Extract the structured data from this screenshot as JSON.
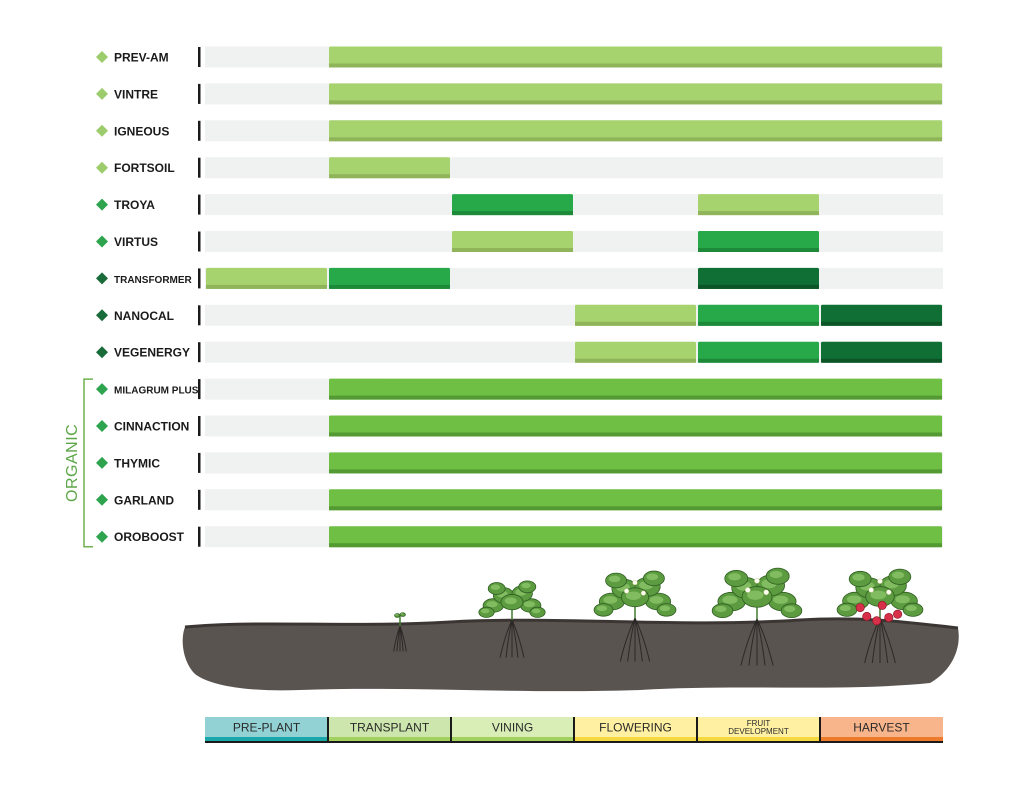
{
  "chart_data": {
    "type": "timeline",
    "title": "",
    "stages": [
      "PRE-PLANT",
      "TRANSPLANT",
      "VINING",
      "FLOWERING",
      "FRUIT DEVELOPMENT",
      "HARVEST"
    ],
    "stage_colors": [
      "#92d2d4",
      "#cde6ae",
      "#d9eeb6",
      "#fff0a2",
      "#fff0a2",
      "#f8b48a"
    ],
    "stage_bar_colors": [
      "#1aa7a9",
      "#a2d15f",
      "#a2d15f",
      "#f4d940",
      "#f4d940",
      "#ee7a2c"
    ],
    "products": [
      {
        "name": "PREV-AM",
        "marker": "light",
        "segments": [
          {
            "stages": [
              "TRANSPLANT",
              "HARVEST"
            ],
            "shade": "light"
          }
        ]
      },
      {
        "name": "VINTRE",
        "marker": "light",
        "segments": [
          {
            "stages": [
              "TRANSPLANT",
              "HARVEST"
            ],
            "shade": "light"
          }
        ]
      },
      {
        "name": "IGNEOUS",
        "marker": "light",
        "segments": [
          {
            "stages": [
              "TRANSPLANT",
              "HARVEST"
            ],
            "shade": "light"
          }
        ]
      },
      {
        "name": "FORTSOIL",
        "marker": "light",
        "segments": [
          {
            "stages": [
              "TRANSPLANT",
              "TRANSPLANT"
            ],
            "shade": "light"
          }
        ]
      },
      {
        "name": "TROYA",
        "marker": "medium",
        "segments": [
          {
            "stages": [
              "VINING",
              "VINING"
            ],
            "shade": "medium"
          },
          {
            "stages": [
              "FRUIT DEVELOPMENT",
              "FRUIT DEVELOPMENT"
            ],
            "shade": "light"
          }
        ]
      },
      {
        "name": "VIRTUS",
        "marker": "medium",
        "segments": [
          {
            "stages": [
              "VINING",
              "VINING"
            ],
            "shade": "light"
          },
          {
            "stages": [
              "FRUIT DEVELOPMENT",
              "FRUIT DEVELOPMENT"
            ],
            "shade": "medium"
          }
        ]
      },
      {
        "name": "TRANSFORMER",
        "marker": "dark",
        "segments": [
          {
            "stages": [
              "PRE-PLANT",
              "PRE-PLANT"
            ],
            "shade": "light"
          },
          {
            "stages": [
              "TRANSPLANT",
              "TRANSPLANT"
            ],
            "shade": "medium"
          },
          {
            "stages": [
              "FRUIT DEVELOPMENT",
              "FRUIT DEVELOPMENT"
            ],
            "shade": "dark"
          }
        ]
      },
      {
        "name": "NANOCAL",
        "marker": "dark",
        "segments": [
          {
            "stages": [
              "FLOWERING",
              "FLOWERING"
            ],
            "shade": "light"
          },
          {
            "stages": [
              "FRUIT DEVELOPMENT",
              "FRUIT DEVELOPMENT"
            ],
            "shade": "medium"
          },
          {
            "stages": [
              "HARVEST",
              "HARVEST"
            ],
            "shade": "dark"
          }
        ]
      },
      {
        "name": "VEGENERGY",
        "marker": "dark",
        "segments": [
          {
            "stages": [
              "FLOWERING",
              "FLOWERING"
            ],
            "shade": "light"
          },
          {
            "stages": [
              "FRUIT DEVELOPMENT",
              "FRUIT DEVELOPMENT"
            ],
            "shade": "medium"
          },
          {
            "stages": [
              "HARVEST",
              "HARVEST"
            ],
            "shade": "dark"
          }
        ]
      },
      {
        "name": "MILAGRUM PLUS",
        "marker": "medium",
        "group": "ORGANIC",
        "segments": [
          {
            "stages": [
              "TRANSPLANT",
              "HARVEST"
            ],
            "shade": "organic"
          }
        ]
      },
      {
        "name": "CINNACTION",
        "marker": "medium",
        "group": "ORGANIC",
        "segments": [
          {
            "stages": [
              "TRANSPLANT",
              "HARVEST"
            ],
            "shade": "organic"
          }
        ]
      },
      {
        "name": "THYMIC",
        "marker": "medium",
        "group": "ORGANIC",
        "segments": [
          {
            "stages": [
              "TRANSPLANT",
              "HARVEST"
            ],
            "shade": "organic"
          }
        ]
      },
      {
        "name": "GARLAND",
        "marker": "medium",
        "group": "ORGANIC",
        "segments": [
          {
            "stages": [
              "TRANSPLANT",
              "HARVEST"
            ],
            "shade": "organic"
          }
        ]
      },
      {
        "name": "OROBOOST",
        "marker": "medium",
        "group": "ORGANIC",
        "segments": [
          {
            "stages": [
              "TRANSPLANT",
              "HARVEST"
            ],
            "shade": "organic"
          }
        ]
      }
    ],
    "groups": [
      {
        "name": "ORGANIC",
        "products": [
          "MILAGRUM PLUS",
          "CINNACTION",
          "THYMIC",
          "GARLAND",
          "OROBOOST"
        ]
      }
    ],
    "shades": {
      "light": {
        "fill": "#a6d36e",
        "edge": "#8fb45a"
      },
      "medium": {
        "fill": "#27a94a",
        "edge": "#1d8a3a"
      },
      "dark": {
        "fill": "#0f6f34",
        "edge": "#0b5527"
      },
      "organic": {
        "fill": "#6fbf44",
        "edge": "#549a33"
      }
    },
    "marker_colors": {
      "light": "#9ccc6b",
      "medium": "#2ea44f",
      "dark": "#1a6b3a"
    },
    "track_color": "#f0f1f1",
    "ground_color": "#5a5450"
  }
}
